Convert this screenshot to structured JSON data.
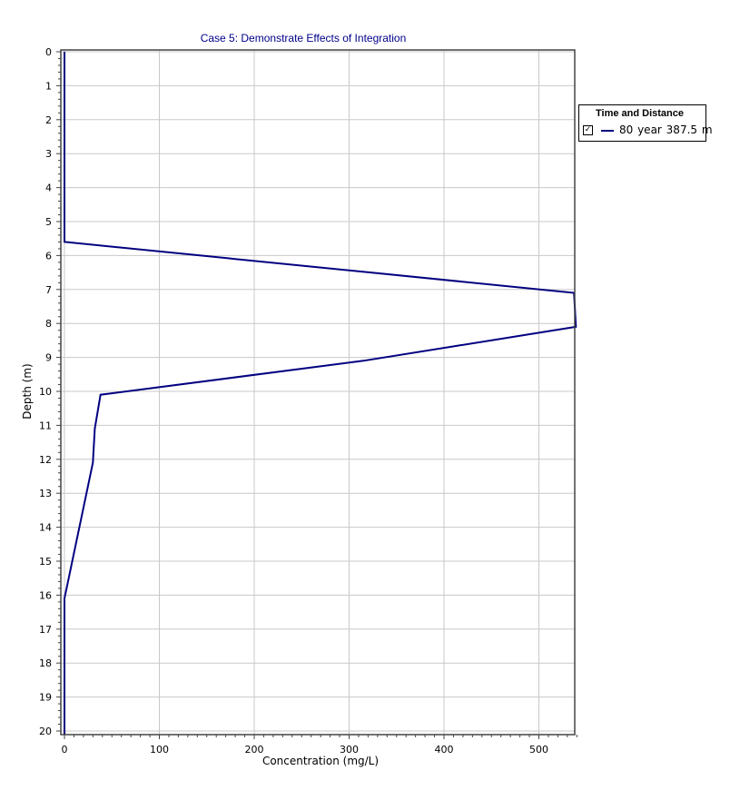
{
  "chart_data": {
    "type": "line",
    "title": "Case 5: Demonstrate Effects of Integration",
    "xlabel": "Concentration (mg/L)",
    "ylabel": "Depth (m)",
    "xlim": [
      0,
      540
    ],
    "ylim": [
      0,
      20
    ],
    "y_inverted": true,
    "grid": true,
    "x_ticks": [
      0,
      100,
      200,
      300,
      400,
      500
    ],
    "y_ticks": [
      0,
      1,
      2,
      3,
      4,
      5,
      6,
      7,
      8,
      9,
      10,
      11,
      12,
      13,
      14,
      15,
      16,
      17,
      18,
      19,
      20
    ],
    "legend_position": "right",
    "legend_title": "Time and Distance",
    "series": [
      {
        "name": "80 year  387.5 m",
        "color": "#000080",
        "x": [
          0,
          0,
          0,
          537,
          539,
          315,
          38,
          32,
          30,
          0,
          0,
          0
        ],
        "y": [
          0,
          5.6,
          5.6,
          7.1,
          8.1,
          9.1,
          10.1,
          11.1,
          12.1,
          16.1,
          17,
          20.1
        ]
      }
    ]
  }
}
